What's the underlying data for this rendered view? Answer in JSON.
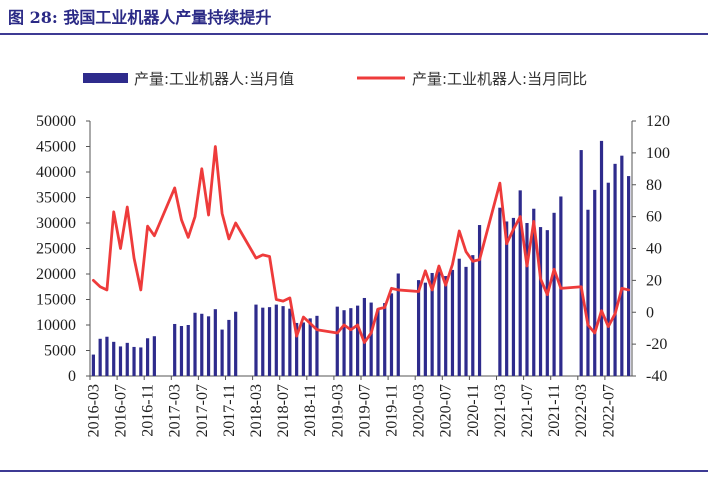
{
  "title": "图 28: 我国工业机器人产量持续提升",
  "colors": {
    "bar": "#2E2B8C",
    "line": "#EE3B3B",
    "rule": "#3D3A94",
    "title": "#2B2A86",
    "axis": "#555555"
  },
  "chart_data": {
    "type": "bar",
    "legend_position": "top",
    "grid": false,
    "categories": [
      "2016-03",
      "2016-04",
      "2016-05",
      "2016-06",
      "2016-07",
      "2016-08",
      "2016-09",
      "2016-10",
      "2016-11",
      "2016-12",
      "2017-01",
      "2017-02",
      "2017-03",
      "2017-04",
      "2017-05",
      "2017-06",
      "2017-07",
      "2017-08",
      "2017-09",
      "2017-10",
      "2017-11",
      "2017-12",
      "2018-01",
      "2018-02",
      "2018-03",
      "2018-04",
      "2018-05",
      "2018-06",
      "2018-07",
      "2018-08",
      "2018-09",
      "2018-10",
      "2018-11",
      "2018-12",
      "2019-01",
      "2019-02",
      "2019-03",
      "2019-04",
      "2019-05",
      "2019-06",
      "2019-07",
      "2019-08",
      "2019-09",
      "2019-10",
      "2019-11",
      "2019-12",
      "2020-01",
      "2020-02",
      "2020-03",
      "2020-04",
      "2020-05",
      "2020-06",
      "2020-07",
      "2020-08",
      "2020-09",
      "2020-10",
      "2020-11",
      "2020-12",
      "2021-01",
      "2021-02",
      "2021-03",
      "2021-04",
      "2021-05",
      "2021-06",
      "2021-07",
      "2021-08",
      "2021-09",
      "2021-10",
      "2021-11",
      "2021-12",
      "2022-01",
      "2022-02",
      "2022-03",
      "2022-04",
      "2022-05",
      "2022-06",
      "2022-07",
      "2022-08",
      "2022-09",
      "2022-10"
    ],
    "series": [
      {
        "name": "产量:工业机器人:当月值",
        "type": "bar",
        "axis": "left",
        "values": [
          4200,
          7300,
          7700,
          6700,
          5800,
          6500,
          5700,
          5600,
          7400,
          7800,
          null,
          null,
          10200,
          9800,
          10000,
          12400,
          12200,
          11700,
          13100,
          9100,
          11000,
          12600,
          null,
          null,
          14000,
          13400,
          13500,
          14000,
          13700,
          13200,
          10400,
          10500,
          11300,
          11800,
          null,
          null,
          13600,
          12900,
          13300,
          13800,
          15300,
          14400,
          13200,
          14300,
          16200,
          20100,
          null,
          null,
          18800,
          18300,
          20200,
          20500,
          19600,
          20800,
          23000,
          21400,
          23700,
          29600,
          null,
          null,
          33000,
          30300,
          31000,
          36400,
          30000,
          32800,
          29200,
          28600,
          32000,
          35200,
          null,
          null,
          44300,
          32600,
          36500,
          46100,
          37900,
          41600,
          43200,
          39200
        ]
      },
      {
        "name": "产量:工业机器人:当月同比",
        "type": "line",
        "axis": "right",
        "values": [
          20,
          16,
          14,
          63,
          40,
          66,
          34,
          14,
          54,
          48,
          null,
          null,
          78,
          58,
          47,
          60,
          90,
          61,
          104,
          62,
          46,
          56,
          null,
          null,
          34,
          36,
          35,
          8,
          7,
          9,
          -15,
          -3,
          -7,
          -11,
          null,
          null,
          -13,
          -8,
          -11,
          -8,
          -19,
          -13,
          2,
          3,
          15,
          14,
          null,
          null,
          13,
          26,
          14,
          29,
          17,
          30,
          51,
          38,
          32,
          33,
          null,
          null,
          81,
          43,
          52,
          60,
          29,
          57,
          21,
          11,
          27,
          15,
          null,
          null,
          16,
          -8,
          -13,
          1,
          -9,
          -1,
          15,
          14
        ]
      }
    ],
    "y_left": {
      "min": 0,
      "max": 50000,
      "ticks": [
        0,
        5000,
        10000,
        15000,
        20000,
        25000,
        30000,
        35000,
        40000,
        45000,
        50000
      ]
    },
    "y_right": {
      "min": -40,
      "max": 120,
      "ticks": [
        -40,
        -20,
        0,
        20,
        40,
        60,
        80,
        100,
        120
      ]
    }
  }
}
